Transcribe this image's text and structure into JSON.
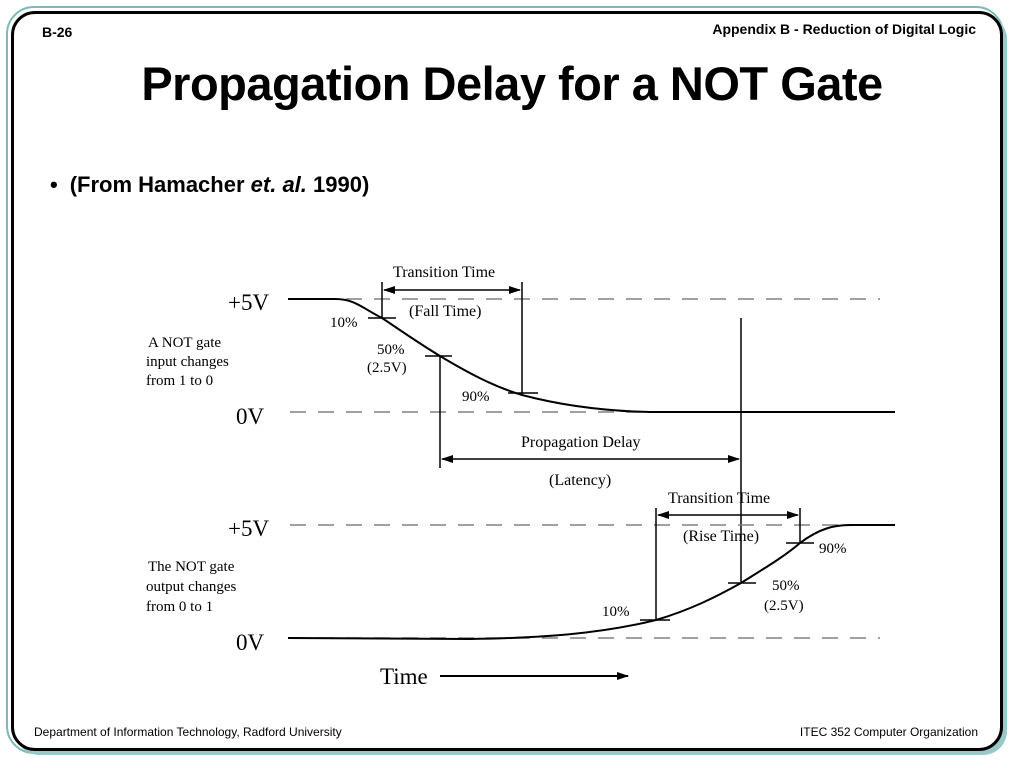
{
  "header": {
    "slide_number": "B-26",
    "section": "Appendix B - Reduction of Digital Logic"
  },
  "title": "Propagation Delay for a NOT Gate",
  "bullet": {
    "prefix": "(From Hamacher ",
    "italic": "et. al.",
    "suffix": " 1990)"
  },
  "diagram": {
    "input": {
      "high_label": "+5V",
      "low_label": "0V",
      "caption_lines": [
        "A NOT gate",
        "input changes",
        "from 1 to 0"
      ],
      "transition_title": "Transition Time",
      "transition_sub": "(Fall Time)",
      "pct_10": "10%",
      "pct_50": "50%",
      "pct_50_v": "(2.5V)",
      "pct_90": "90%"
    },
    "propagation": {
      "label": "Propagation Delay",
      "sub": "(Latency)"
    },
    "output": {
      "high_label": "+5V",
      "low_label": "0V",
      "caption_lines": [
        "The NOT gate",
        "output changes",
        "from 0 to 1"
      ],
      "transition_title": "Transition Time",
      "transition_sub": "(Rise Time)",
      "pct_10": "10%",
      "pct_50": "50%",
      "pct_50_v": "(2.5V)",
      "pct_90": "90%"
    },
    "time_label": "Time"
  },
  "footer": {
    "left": "Department of Information Technology, Radford University",
    "right": "ITEC 352 Computer Organization"
  },
  "colors": {
    "frame_accent": "#7fb8b8",
    "ink": "#000000",
    "dash": "#808080"
  }
}
